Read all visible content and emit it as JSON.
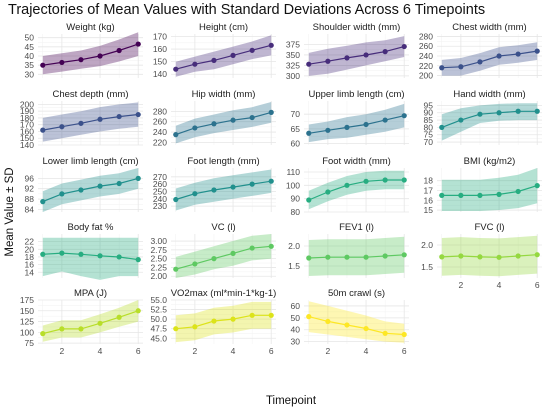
{
  "figure": {
    "title": "Trajectories of Mean Values with Standard Deviations Across 6 Timepoints",
    "xlabel": "Timepoint",
    "ylabel": "Mean Value ± SD"
  },
  "chart_data": [
    {
      "type": "line",
      "title": "Weight (kg)",
      "x": [
        1,
        2,
        3,
        4,
        5,
        6
      ],
      "y": [
        35,
        36.5,
        38,
        40,
        43,
        46.5
      ],
      "lower": [
        30,
        31.5,
        33,
        34.5,
        37,
        40
      ],
      "upper": [
        40,
        41.5,
        43,
        45.5,
        49,
        53
      ],
      "ylim": [
        28,
        52
      ],
      "yticks": [
        30,
        35,
        40,
        45,
        50
      ],
      "color": "#440154"
    },
    {
      "type": "line",
      "title": "Height (cm)",
      "x": [
        1,
        2,
        3,
        4,
        5,
        6
      ],
      "y": [
        144,
        148,
        151,
        155,
        159,
        163
      ],
      "lower": [
        138,
        142,
        144,
        148,
        152,
        155
      ],
      "upper": [
        150,
        154,
        158,
        162,
        166,
        171
      ],
      "ylim": [
        137,
        172
      ],
      "yticks": [
        140,
        150,
        160,
        170
      ],
      "color": "#472d7b"
    },
    {
      "type": "line",
      "title": "Shoulder width (mm)",
      "x": [
        1,
        2,
        3,
        4,
        5,
        6
      ],
      "y": [
        328,
        335,
        343,
        350,
        358,
        370
      ],
      "lower": [
        300,
        305,
        315,
        325,
        335,
        345
      ],
      "upper": [
        355,
        365,
        372,
        380,
        385,
        395
      ],
      "ylim": [
        295,
        400
      ],
      "yticks": [
        300,
        325,
        350,
        375
      ],
      "color": "#472d7b"
    },
    {
      "type": "line",
      "title": "Chest width (mm)",
      "x": [
        1,
        2,
        3,
        4,
        5,
        6
      ],
      "y": [
        216,
        218,
        228,
        240,
        244,
        250
      ],
      "lower": [
        200,
        200,
        210,
        222,
        226,
        232
      ],
      "upper": [
        232,
        236,
        246,
        258,
        262,
        268
      ],
      "ylim": [
        195,
        285
      ],
      "yticks": [
        200,
        220,
        240,
        260,
        280
      ],
      "color": "#3b518b"
    },
    {
      "type": "line",
      "title": "Chest depth (mm)",
      "x": [
        1,
        2,
        3,
        4,
        5,
        6
      ],
      "y": [
        162,
        167,
        172,
        178,
        182,
        185
      ],
      "lower": [
        145,
        150,
        155,
        160,
        164,
        167
      ],
      "upper": [
        180,
        185,
        190,
        196,
        200,
        203
      ],
      "ylim": [
        140,
        205
      ],
      "yticks": [
        140,
        150,
        160,
        170,
        180,
        190,
        200
      ],
      "color": "#3b518b"
    },
    {
      "type": "line",
      "title": "Hip width (mm)",
      "x": [
        1,
        2,
        3,
        4,
        5,
        6
      ],
      "y": [
        235,
        248,
        256,
        263,
        268,
        278
      ],
      "lower": [
        218,
        230,
        238,
        244,
        250,
        258
      ],
      "upper": [
        252,
        266,
        274,
        282,
        288,
        298
      ],
      "ylim": [
        215,
        300
      ],
      "yticks": [
        220,
        240,
        260,
        280
      ],
      "color": "#2c728e"
    },
    {
      "type": "line",
      "title": "Upper limb length (cm)",
      "x": [
        1,
        2,
        3,
        4,
        5,
        6
      ],
      "y": [
        63.5,
        64.5,
        65.5,
        66.5,
        68,
        69.5
      ],
      "lower": [
        60.5,
        61.5,
        62,
        63,
        64,
        65.5
      ],
      "upper": [
        66.5,
        67.5,
        69,
        70,
        71.5,
        73.5
      ],
      "ylim": [
        59.5,
        74.5
      ],
      "yticks": [
        60,
        65,
        70
      ],
      "color": "#2c728e"
    },
    {
      "type": "line",
      "title": "Hand width (mm)",
      "x": [
        1,
        2,
        3,
        4,
        5,
        6
      ],
      "y": [
        80,
        85,
        89,
        90,
        91,
        91
      ],
      "lower": [
        71,
        77,
        83,
        84.5,
        85,
        85
      ],
      "upper": [
        89,
        93,
        95,
        96,
        96.5,
        96.5
      ],
      "ylim": [
        68,
        98
      ],
      "yticks": [
        70,
        75,
        80,
        85,
        90,
        95
      ],
      "color": "#21908d"
    },
    {
      "type": "line",
      "title": "Lower limb length (cm)",
      "x": [
        1,
        2,
        3,
        4,
        5,
        6
      ],
      "y": [
        87,
        90,
        91.5,
        93,
        94,
        96
      ],
      "lower": [
        83,
        86,
        87.5,
        89,
        90,
        92
      ],
      "upper": [
        91,
        94,
        95.5,
        97,
        98,
        100
      ],
      "ylim": [
        83,
        100
      ],
      "yticks": [
        84,
        88,
        92,
        96
      ],
      "color": "#21908d"
    },
    {
      "type": "line",
      "title": "Foot length (mm)",
      "x": [
        1,
        2,
        3,
        4,
        5,
        6
      ],
      "y": [
        239,
        247,
        252,
        256,
        260,
        264
      ],
      "lower": [
        224,
        232,
        236,
        240,
        244,
        248
      ],
      "upper": [
        254,
        262,
        268,
        272,
        276,
        280
      ],
      "ylim": [
        222,
        282
      ],
      "yticks": [
        230,
        240,
        250,
        260,
        270
      ],
      "color": "#21908d"
    },
    {
      "type": "line",
      "title": "Foot width (mm)",
      "x": [
        1,
        2,
        3,
        4,
        5,
        6
      ],
      "y": [
        89,
        95,
        100,
        103,
        104,
        104
      ],
      "lower": [
        82,
        88,
        93,
        96,
        97,
        97
      ],
      "upper": [
        96,
        102,
        107,
        110,
        111,
        111
      ],
      "ylim": [
        80,
        113
      ],
      "yticks": [
        80,
        90,
        100,
        110
      ],
      "color": "#27ad81"
    },
    {
      "type": "line",
      "title": "BMI (kg/m2)",
      "x": [
        1,
        2,
        3,
        4,
        5,
        6
      ],
      "y": [
        16.5,
        16.5,
        16.5,
        16.6,
        16.9,
        17.5
      ],
      "lower": [
        14.9,
        14.9,
        14.9,
        15,
        15.2,
        15.7
      ],
      "upper": [
        18.1,
        18.1,
        18.1,
        18.3,
        18.6,
        19.3
      ],
      "ylim": [
        14.8,
        19.3
      ],
      "yticks": [
        15,
        16,
        17,
        18
      ],
      "color": "#27ad81"
    },
    {
      "type": "line",
      "title": "Body fat %",
      "x": [
        1,
        2,
        3,
        4,
        5,
        6
      ],
      "y": [
        18.7,
        19,
        18.7,
        18.3,
        18.0,
        17.3
      ],
      "lower": [
        13,
        14.2,
        13,
        12,
        13,
        13
      ],
      "upper": [
        23,
        23,
        23,
        23,
        23,
        23
      ],
      "ylim": [
        12.5,
        24
      ],
      "yticks": [
        14,
        16,
        18,
        20,
        22
      ],
      "color": "#27ad81"
    },
    {
      "type": "line",
      "title": "VC (l)",
      "x": [
        1,
        2,
        3,
        4,
        5,
        6
      ],
      "y": [
        2.2,
        2.35,
        2.5,
        2.65,
        2.8,
        2.85
      ],
      "lower": [
        1.95,
        2.05,
        2.2,
        2.3,
        2.45,
        2.5
      ],
      "upper": [
        2.55,
        2.7,
        2.85,
        3.0,
        3.15,
        3.2
      ],
      "ylim": [
        1.95,
        3.2
      ],
      "yticks": [
        2.0,
        2.25,
        2.5,
        2.75,
        3.0
      ],
      "color": "#5ec962"
    },
    {
      "type": "line",
      "title": "FEV1 (l)",
      "x": [
        1,
        2,
        3,
        4,
        5,
        6
      ],
      "y": [
        1.7,
        1.72,
        1.72,
        1.72,
        1.75,
        1.78
      ],
      "lower": [
        1.25,
        1.27,
        1.27,
        1.27,
        1.3,
        1.33
      ],
      "upper": [
        2.15,
        2.17,
        2.17,
        2.17,
        2.2,
        2.23
      ],
      "ylim": [
        1.2,
        2.3
      ],
      "yticks": [
        1.5,
        2.0
      ],
      "color": "#5ec962"
    },
    {
      "type": "line",
      "title": "FVC (l)",
      "x": [
        1,
        2,
        3,
        4,
        5,
        6
      ],
      "y": [
        1.73,
        1.75,
        1.73,
        1.72,
        1.75,
        1.78
      ],
      "lower": [
        1.3,
        1.32,
        1.3,
        1.29,
        1.32,
        1.35
      ],
      "upper": [
        2.16,
        2.18,
        2.16,
        2.15,
        2.18,
        2.21
      ],
      "ylim": [
        1.25,
        2.25
      ],
      "yticks": [
        1.5,
        2.0
      ],
      "color": "#95d840"
    },
    {
      "type": "line",
      "title": "MPA (J)",
      "x": [
        1,
        2,
        3,
        4,
        5,
        6
      ],
      "y": [
        97,
        108,
        108,
        121,
        135,
        150
      ],
      "lower": [
        78,
        88,
        88,
        100,
        113,
        125
      ],
      "upper": [
        116,
        128,
        128,
        142,
        157,
        175
      ],
      "ylim": [
        73,
        175
      ],
      "yticks": [
        75,
        100,
        125,
        150,
        175
      ],
      "color": "#b8de29"
    },
    {
      "type": "line",
      "title": "VO2max (ml*min-1*kg-1)",
      "x": [
        1,
        2,
        3,
        4,
        5,
        6
      ],
      "y": [
        47.5,
        48,
        49.5,
        50,
        51,
        51
      ],
      "lower": [
        44,
        44.5,
        46,
        46.5,
        47.5,
        47.5
      ],
      "upper": [
        51,
        51.5,
        53,
        53.5,
        54.5,
        54.5
      ],
      "ylim": [
        43.5,
        55
      ],
      "yticks": [
        45,
        47.5,
        50,
        52.5,
        55
      ],
      "color": "#dce319"
    },
    {
      "type": "line",
      "title": "50m crawl (s)",
      "x": [
        1,
        2,
        3,
        4,
        5,
        6
      ],
      "y": [
        51,
        47,
        44,
        41,
        37,
        36
      ],
      "lower": [
        38,
        36,
        34,
        32,
        30,
        29
      ],
      "upper": [
        64,
        60,
        56,
        52,
        47,
        45
      ],
      "ylim": [
        28,
        65
      ],
      "yticks": [
        30,
        40,
        50,
        60
      ],
      "color": "#fde725"
    }
  ]
}
